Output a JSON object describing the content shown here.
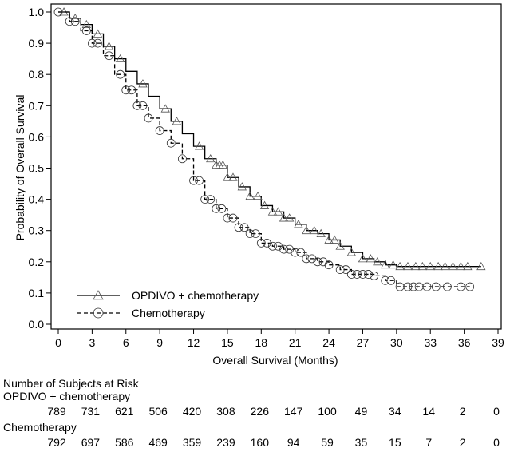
{
  "chart_data": {
    "type": "line",
    "subtype": "kaplan-meier",
    "xlabel": "Overall Survival (Months)",
    "ylabel": "Probability of Overall Survival",
    "xlim": [
      0,
      39
    ],
    "ylim": [
      0,
      1.0
    ],
    "xticks": [
      "0",
      "3",
      "6",
      "9",
      "12",
      "15",
      "18",
      "21",
      "24",
      "27",
      "30",
      "33",
      "36",
      "39"
    ],
    "yticks": [
      "0.0",
      "0.1",
      "0.2",
      "0.3",
      "0.4",
      "0.5",
      "0.6",
      "0.7",
      "0.8",
      "0.9",
      "1.0"
    ],
    "grid": false,
    "legend_placement": "bottom-left",
    "series": [
      {
        "name": "OPDIVO + chemotherapy",
        "line_style": "solid",
        "marker": "triangle",
        "x": [
          0,
          1,
          2,
          3,
          4,
          5,
          6,
          7,
          8,
          9,
          10,
          11,
          12,
          13,
          14,
          15,
          16,
          17,
          18,
          19,
          20,
          21,
          22,
          23,
          24,
          25,
          26,
          27,
          28,
          29,
          30,
          37.5
        ],
        "y": [
          1.0,
          0.98,
          0.96,
          0.93,
          0.89,
          0.85,
          0.81,
          0.77,
          0.73,
          0.69,
          0.65,
          0.61,
          0.57,
          0.53,
          0.51,
          0.47,
          0.44,
          0.41,
          0.38,
          0.36,
          0.34,
          0.32,
          0.3,
          0.29,
          0.27,
          0.25,
          0.23,
          0.21,
          0.2,
          0.19,
          0.185,
          0.185
        ],
        "censored_x": [
          0.5,
          1.5,
          2.5,
          3.5,
          4.5,
          5.5,
          7.5,
          9.5,
          10.5,
          12.5,
          13.5,
          14,
          14.3,
          14.6,
          15,
          15.5,
          16.3,
          17,
          17.7,
          18.3,
          19,
          19.5,
          20,
          20.5,
          21.3,
          22,
          22.7,
          23.3,
          24,
          24.5,
          25,
          26,
          27,
          27.7,
          28.3,
          29,
          29.7,
          30.3,
          31,
          31.7,
          32.3,
          33,
          33.7,
          34.3,
          35,
          35.7,
          36.3,
          37.5
        ]
      },
      {
        "name": "Chemotherapy",
        "line_style": "dashed",
        "marker": "circle",
        "x": [
          0,
          1,
          2,
          3,
          4,
          5,
          6,
          7,
          8,
          9,
          10,
          11,
          12,
          13,
          14,
          15,
          16,
          17,
          18,
          19,
          20,
          21,
          22,
          23,
          24,
          25,
          26,
          27,
          28,
          29,
          30,
          36.5
        ],
        "y": [
          1.0,
          0.97,
          0.94,
          0.9,
          0.86,
          0.8,
          0.75,
          0.7,
          0.66,
          0.62,
          0.58,
          0.53,
          0.46,
          0.4,
          0.37,
          0.34,
          0.31,
          0.29,
          0.26,
          0.25,
          0.24,
          0.23,
          0.21,
          0.2,
          0.19,
          0.175,
          0.16,
          0.16,
          0.155,
          0.14,
          0.12,
          0.12
        ],
        "censored_x": [
          0,
          1,
          1.5,
          2.5,
          3,
          3.5,
          4.5,
          5.5,
          6,
          6.5,
          7,
          7.5,
          8,
          9,
          10,
          11,
          12,
          12.5,
          13,
          13.5,
          14,
          14.5,
          15,
          15.5,
          16,
          16.5,
          17,
          17.5,
          18,
          18.5,
          19,
          19.5,
          20,
          20.5,
          21,
          21.5,
          22,
          22.5,
          23,
          23.5,
          24,
          25,
          25.5,
          26,
          26.5,
          27,
          27.5,
          28,
          29,
          29.5,
          30.3,
          31,
          31.5,
          32,
          32.7,
          33.5,
          34.5,
          35.7,
          36.5
        ]
      }
    ]
  },
  "risk_table": {
    "title": "Number of Subjects at Risk",
    "rows": [
      {
        "label": "OPDIVO + chemotherapy",
        "values": [
          "789",
          "731",
          "621",
          "506",
          "420",
          "308",
          "226",
          "147",
          "100",
          "49",
          "34",
          "14",
          "2",
          "0"
        ]
      },
      {
        "label": "Chemotherapy",
        "values": [
          "792",
          "697",
          "586",
          "469",
          "359",
          "239",
          "160",
          "94",
          "59",
          "35",
          "15",
          "7",
          "2",
          "0"
        ]
      }
    ]
  }
}
